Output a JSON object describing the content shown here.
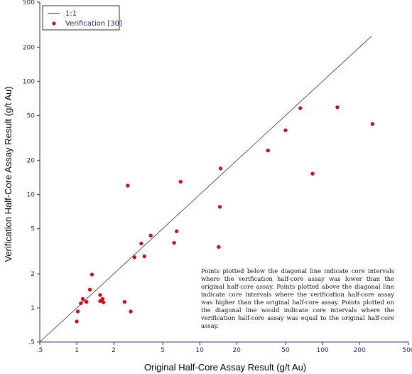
{
  "chart_data": {
    "type": "scatter",
    "xlabel": "Original Half-Core Assay Result (g/t Au)",
    "ylabel": "Verification Half-Core Assay Result (g/t Au)",
    "xscale": "log",
    "yscale": "log",
    "xlim": [
      0.5,
      500
    ],
    "ylim": [
      0.5,
      500
    ],
    "xticks": [
      0.5,
      1,
      2,
      5,
      10,
      20,
      50,
      100,
      200,
      500
    ],
    "xtick_labels": [
      ".5",
      "1",
      "2",
      "5",
      "10",
      "20",
      "50",
      "100",
      "200",
      "500"
    ],
    "yticks": [
      0.5,
      1,
      2,
      5,
      10,
      20,
      50,
      100,
      200,
      500
    ],
    "ytick_labels": [
      ".5",
      "1",
      "2",
      "5",
      "10",
      "20",
      "50",
      "100",
      "200",
      "500"
    ],
    "grid": false,
    "legend_position": "top-left",
    "legend": [
      {
        "label": "1:1",
        "marker": "line",
        "color": "#333333"
      },
      {
        "label": "Verification [30]",
        "marker": "circle",
        "color": "#c0161b"
      }
    ],
    "reference_line": {
      "name": "1:1",
      "x": [
        0.5,
        250
      ],
      "y": [
        0.5,
        250
      ],
      "color": "#333333"
    },
    "series": [
      {
        "name": "Verification [30]",
        "color": "#c0161b",
        "points": [
          [
            1.0,
            0.76
          ],
          [
            1.02,
            0.93
          ],
          [
            1.08,
            1.1
          ],
          [
            1.12,
            1.2
          ],
          [
            1.2,
            1.13
          ],
          [
            1.28,
            1.45
          ],
          [
            1.33,
            1.97
          ],
          [
            1.55,
            1.3
          ],
          [
            1.55,
            1.15
          ],
          [
            1.62,
            1.2
          ],
          [
            1.65,
            1.12
          ],
          [
            2.45,
            1.13
          ],
          [
            2.6,
            12.0
          ],
          [
            2.75,
            0.93
          ],
          [
            2.95,
            2.8
          ],
          [
            3.35,
            3.7
          ],
          [
            3.55,
            2.85
          ],
          [
            4.0,
            4.35
          ],
          [
            6.2,
            3.75
          ],
          [
            6.5,
            4.75
          ],
          [
            7.0,
            13.0
          ],
          [
            14.3,
            3.45
          ],
          [
            14.6,
            7.8
          ],
          [
            14.8,
            17.0
          ],
          [
            36.0,
            24.5
          ],
          [
            50.0,
            37.0
          ],
          [
            66.0,
            58.0
          ],
          [
            83.0,
            15.3
          ],
          [
            132.0,
            59.0
          ],
          [
            255.0,
            42.0
          ]
        ]
      }
    ],
    "annotation": "Points plotted below the diagonal line indicate core intervals where the verification half-core assay was lower than the original half-core assay. Points plotted above the diagonal line indicate core intervals where the verification half-core assay was higher than the original half-core assay. Points plotted on the diagonal line would indicate core intervals where the verification half-core assay was equal to the original half-core assay."
  }
}
